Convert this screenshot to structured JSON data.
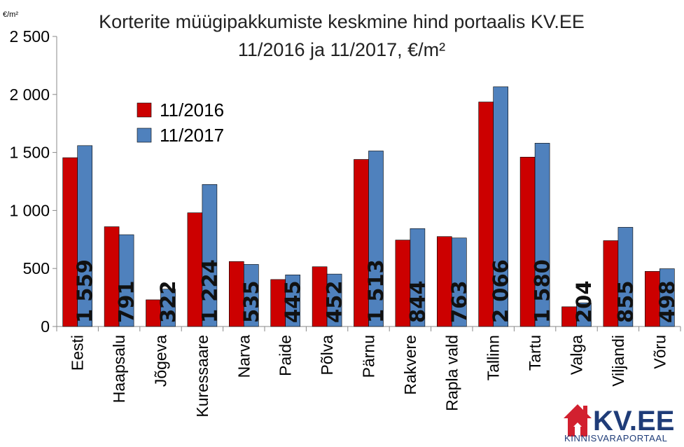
{
  "chart_data": {
    "type": "bar",
    "title": "Korterite müügipakkumiste keskmine hind portaalis KV.EE",
    "subtitle": "11/2016 ja 11/2017, €/m²",
    "ylabel": "€/m²",
    "xlabel": "",
    "ylim": [
      0,
      2500
    ],
    "yticks": [
      0,
      500,
      1000,
      1500,
      2000,
      2500
    ],
    "ytick_labels": [
      "0",
      "500",
      "1 000",
      "1 500",
      "2 000",
      "2 500"
    ],
    "grid": false,
    "legend_position": "upper-left",
    "categories": [
      "Eesti",
      "Haapsalu",
      "Jõgeva",
      "Kuressaare",
      "Narva",
      "Paide",
      "Põlva",
      "Pärnu",
      "Rakvere",
      "Rapla vald",
      "Tallinn",
      "Tartu",
      "Valga",
      "Viljandi",
      "Võru"
    ],
    "series": [
      {
        "name": "11/2016",
        "color": "#cc0000",
        "values": [
          1455,
          860,
          230,
          980,
          560,
          405,
          515,
          1440,
          745,
          775,
          1935,
          1460,
          170,
          740,
          475
        ]
      },
      {
        "name": "11/2017",
        "color": "#4f81bd",
        "values": [
          1559,
          791,
          322,
          1224,
          535,
          445,
          452,
          1513,
          844,
          763,
          2066,
          1580,
          204,
          855,
          498
        ],
        "labels": [
          "1 559",
          "791",
          "322",
          "1 224",
          "535",
          "445",
          "452",
          "1 513",
          "844",
          "763",
          "2 066",
          "1 580",
          "204",
          "855",
          "498"
        ]
      }
    ]
  },
  "logo": {
    "name": "KV.EE",
    "tagline": "KINNISVARAPORTAAL",
    "icon": "house-icon",
    "color": "#1f3c78",
    "accent": "#d2202f"
  }
}
